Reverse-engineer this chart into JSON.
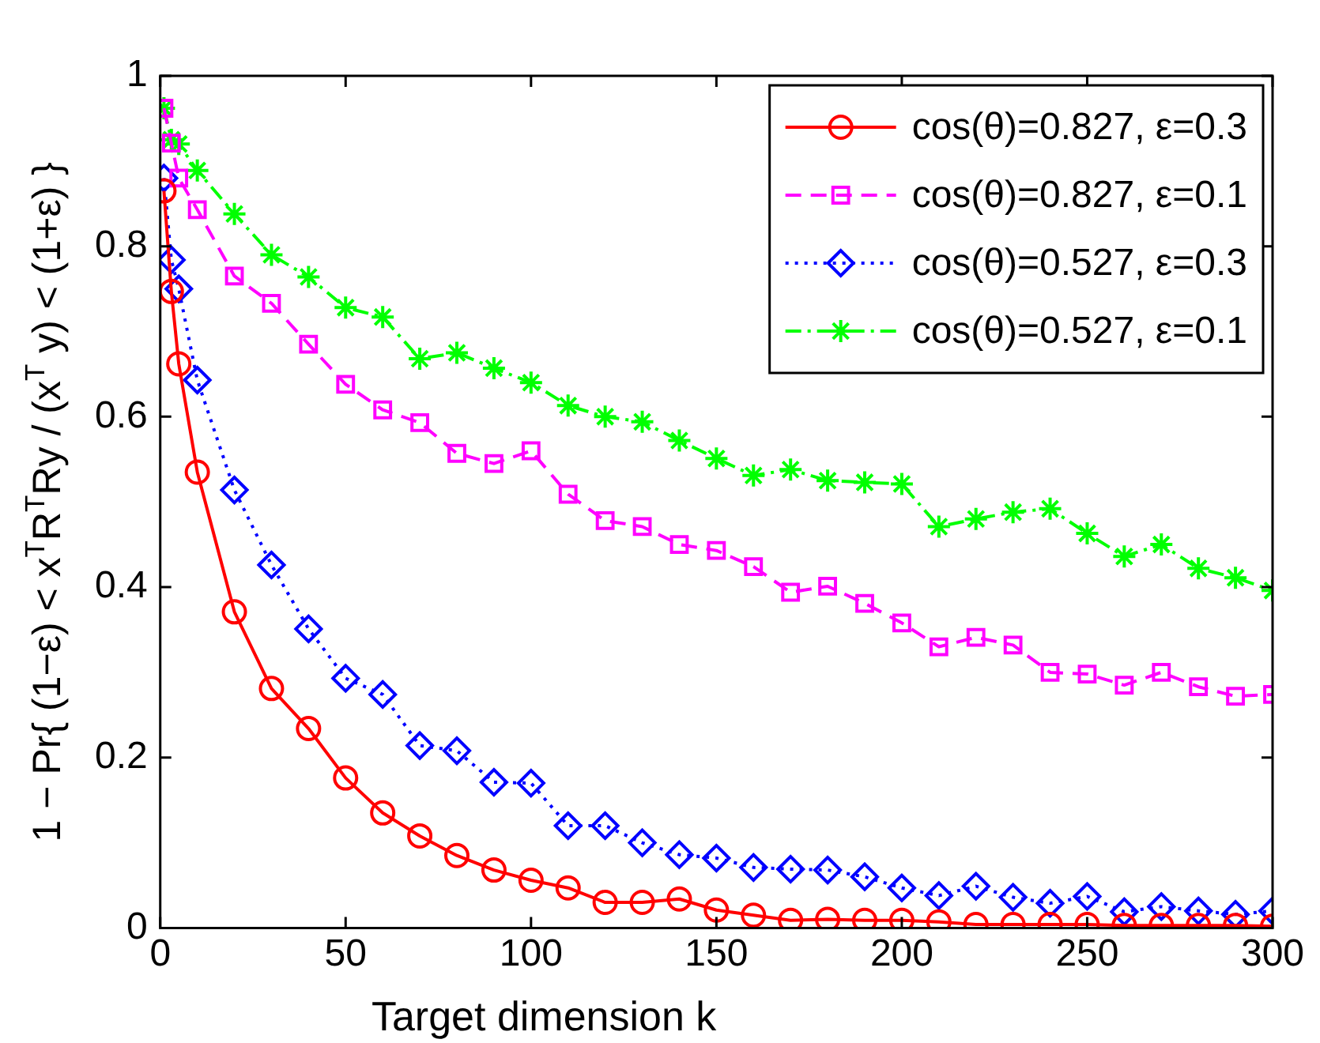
{
  "chart_data": {
    "type": "line",
    "xlabel": "Target dimension k",
    "ylabel": "1 − Pr{ (1−ε) < x$^{T}$R$^{T}$Ry / (x$^{T}$ y) < (1+ε) }",
    "x": [
      1,
      3,
      5,
      10,
      20,
      30,
      40,
      50,
      60,
      70,
      80,
      90,
      100,
      110,
      120,
      130,
      140,
      150,
      160,
      170,
      180,
      190,
      200,
      210,
      220,
      230,
      240,
      250,
      260,
      270,
      280,
      290,
      300
    ],
    "series": [
      {
        "name": "cos(θ)=0.827, ε=0.3",
        "color": "#ff0000",
        "marker": "circle",
        "line_style": "solid",
        "values": [
          0.865,
          0.747,
          0.662,
          0.535,
          0.371,
          0.281,
          0.234,
          0.176,
          0.135,
          0.108,
          0.085,
          0.068,
          0.056,
          0.047,
          0.03,
          0.03,
          0.034,
          0.021,
          0.015,
          0.009,
          0.01,
          0.009,
          0.009,
          0.007,
          0.004,
          0.004,
          0.004,
          0.004,
          0.003,
          0.003,
          0.003,
          0.003,
          0.002
        ]
      },
      {
        "name": "cos(θ)=0.827, ε=0.1",
        "color": "#ff00ff",
        "marker": "square",
        "line_style": "dashed",
        "values": [
          0.962,
          0.921,
          0.88,
          0.843,
          0.765,
          0.733,
          0.685,
          0.638,
          0.608,
          0.593,
          0.557,
          0.545,
          0.56,
          0.509,
          0.478,
          0.471,
          0.45,
          0.443,
          0.424,
          0.394,
          0.401,
          0.381,
          0.358,
          0.33,
          0.341,
          0.332,
          0.3,
          0.298,
          0.285,
          0.3,
          0.283,
          0.272,
          0.274
        ]
      },
      {
        "name": "cos(θ)=0.527, ε=0.3",
        "color": "#0000ff",
        "marker": "diamond",
        "line_style": "dotted",
        "values": [
          0.88,
          0.784,
          0.75,
          0.643,
          0.514,
          0.426,
          0.351,
          0.293,
          0.274,
          0.214,
          0.208,
          0.171,
          0.17,
          0.12,
          0.12,
          0.1,
          0.086,
          0.082,
          0.071,
          0.069,
          0.068,
          0.06,
          0.047,
          0.038,
          0.049,
          0.036,
          0.029,
          0.037,
          0.019,
          0.025,
          0.02,
          0.016,
          0.02
        ]
      },
      {
        "name": "cos(θ)=0.527, ε=0.1",
        "color": "#00ff00",
        "marker": "cross",
        "line_style": "dashdot",
        "values": [
          0.962,
          0.925,
          0.92,
          0.889,
          0.838,
          0.79,
          0.764,
          0.728,
          0.717,
          0.668,
          0.675,
          0.657,
          0.64,
          0.613,
          0.6,
          0.594,
          0.572,
          0.551,
          0.531,
          0.538,
          0.525,
          0.523,
          0.521,
          0.471,
          0.48,
          0.488,
          0.492,
          0.463,
          0.436,
          0.45,
          0.422,
          0.411,
          0.396
        ]
      }
    ],
    "xlim": [
      0,
      300
    ],
    "xticks": [
      0,
      50,
      100,
      150,
      200,
      250,
      300
    ],
    "ylim": [
      0,
      1
    ],
    "yticks": [
      0,
      0.2,
      0.4,
      0.6,
      0.8,
      1
    ],
    "legend": "top right"
  }
}
